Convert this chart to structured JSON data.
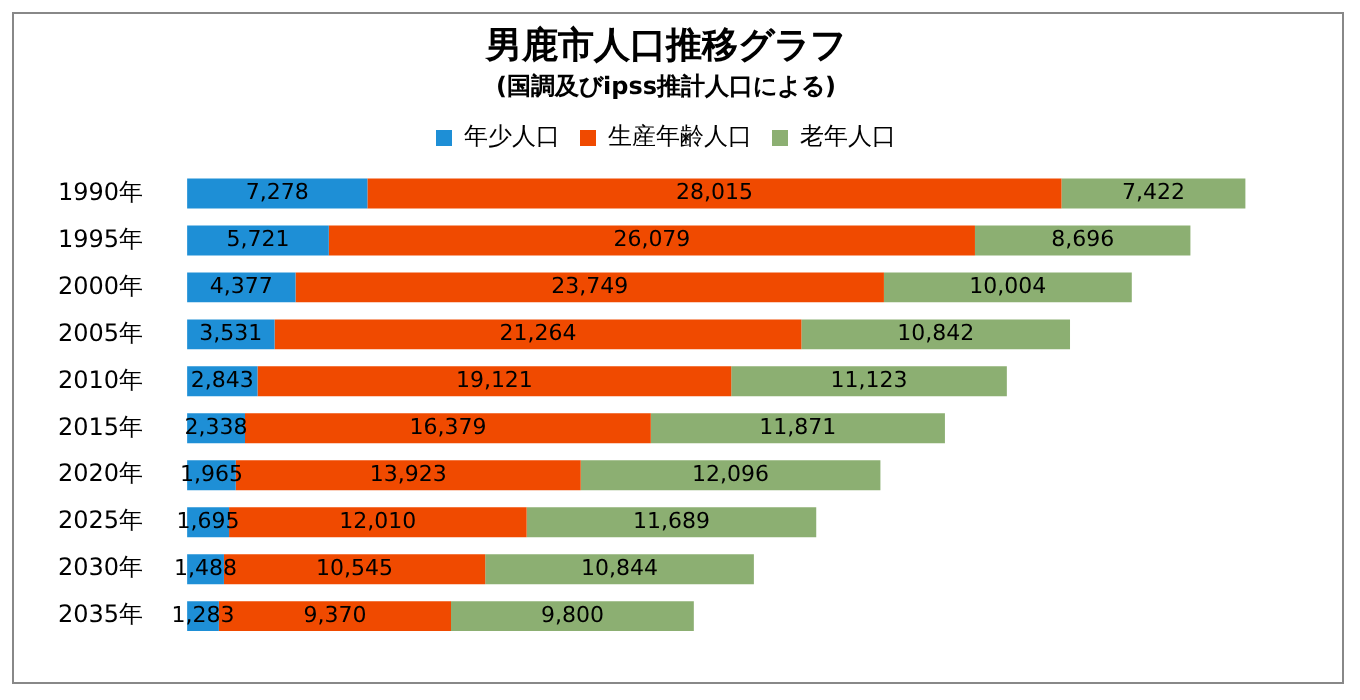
{
  "chart_data": {
    "type": "bar",
    "orientation": "horizontal",
    "stacked": true,
    "title": "男鹿市人口推移グラフ",
    "subtitle": "(国調及びipss推計人口による)",
    "categories": [
      "1990年",
      "1995年",
      "2000年",
      "2005年",
      "2010年",
      "2015年",
      "2020年",
      "2025年",
      "2030年",
      "2035年"
    ],
    "series": [
      {
        "name": "年少人口",
        "color": "#1e8fd6",
        "values": [
          7278,
          5721,
          4377,
          3531,
          2843,
          2338,
          1965,
          1695,
          1488,
          1283
        ],
        "value_labels": [
          "7,278",
          "5,721",
          "4,377",
          "3,531",
          "2,843",
          "2,338",
          "1,965",
          "1,695",
          "1,488",
          "1,283"
        ]
      },
      {
        "name": "生産年齢人口",
        "color": "#f04a00",
        "values": [
          28015,
          26079,
          23749,
          21264,
          19121,
          16379,
          13923,
          12010,
          10545,
          9370
        ],
        "value_labels": [
          "28,015",
          "26,079",
          "23,749",
          "21,264",
          "19,121",
          "16,379",
          "13,923",
          "12,010",
          "10,545",
          "9,370"
        ]
      },
      {
        "name": "老年人口",
        "color": "#8caf72",
        "values": [
          7422,
          8696,
          10004,
          10842,
          11123,
          11871,
          12096,
          11689,
          10844,
          9800
        ],
        "value_labels": [
          "7,422",
          "8,696",
          "10,004",
          "10,842",
          "11,123",
          "11,871",
          "12,096",
          "11,689",
          "10,844",
          "9,800"
        ]
      }
    ],
    "tick_labels": "y",
    "legend": "top"
  }
}
